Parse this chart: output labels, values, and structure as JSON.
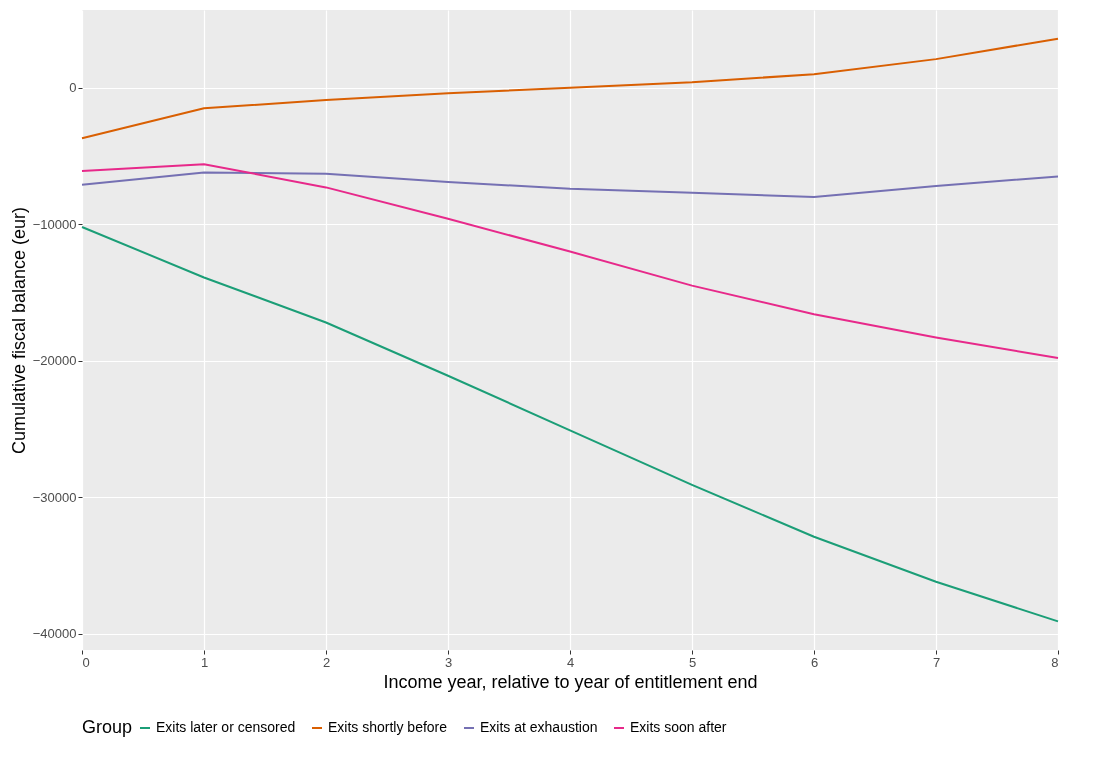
{
  "chart_data": {
    "type": "line",
    "xlabel": "Income year, relative to year of entitlement end",
    "ylabel": "Cumulative fiscal balance (eur)",
    "legend_title": "Group",
    "x": [
      0,
      1,
      2,
      3,
      4,
      5,
      6,
      7,
      8
    ],
    "series": [
      {
        "name": "Exits later or censored",
        "color": "#1b9e77",
        "values": [
          -10200,
          -13900,
          -17200,
          -21100,
          -25100,
          -29100,
          -32900,
          -36200,
          -39100
        ]
      },
      {
        "name": "Exits shortly before",
        "color": "#d95f02",
        "values": [
          -3700,
          -1500,
          -900,
          -400,
          0,
          400,
          1000,
          2100,
          3600
        ]
      },
      {
        "name": "Exits at exhaustion",
        "color": "#7570b3",
        "values": [
          -7100,
          -6200,
          -6300,
          -6900,
          -7400,
          -7700,
          -8000,
          -7200,
          -6500
        ]
      },
      {
        "name": "Exits soon after",
        "color": "#e7298a",
        "values": [
          -6100,
          -5600,
          -7300,
          -9600,
          -12000,
          -14500,
          -16600,
          -18300,
          -19800
        ]
      }
    ],
    "xlim": [
      0,
      8
    ],
    "xticks": [
      0,
      1,
      2,
      3,
      4,
      5,
      6,
      7,
      8
    ],
    "ylim": [
      -41200,
      5700
    ],
    "yticks": [
      -40000,
      -30000,
      -20000,
      -10000,
      0
    ],
    "grid": true,
    "legend": "bottom",
    "line_style": "solid"
  }
}
